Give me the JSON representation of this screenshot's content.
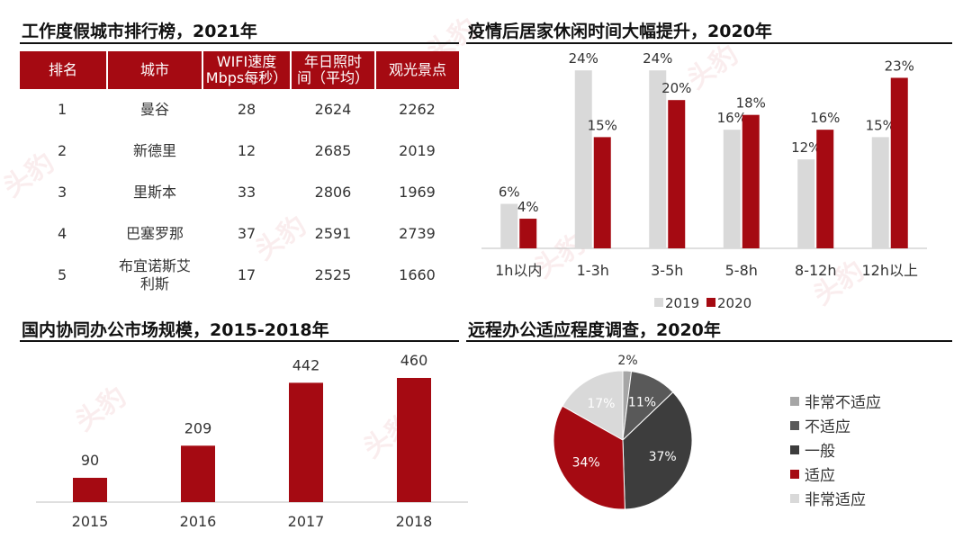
{
  "panels": {
    "cities_title": "工作度假城市排行榜，2021年",
    "leisure_title": "疫情后居家休闲时间大幅提升，2020年",
    "market_title": "国内协同办公市场规模，2015-2018年",
    "remote_title": "远程办公适应程度调查，2020年"
  },
  "watermark": "头豹",
  "colors": {
    "accent": "#a50a12",
    "light_gray": "#d9d9d9",
    "dark_gray": "#3d3d3d"
  },
  "city_table": {
    "headers": [
      "排名",
      "城市",
      "WIFI速度\nMbps每秒）",
      "年日照时\n间（平均）",
      "观光景点"
    ],
    "rows": [
      [
        "1",
        "曼谷",
        "28",
        "2624",
        "2262"
      ],
      [
        "2",
        "新德里",
        "12",
        "2685",
        "2019"
      ],
      [
        "3",
        "里斯本",
        "33",
        "2806",
        "1969"
      ],
      [
        "4",
        "巴塞罗那",
        "37",
        "2591",
        "2739"
      ],
      [
        "5",
        "布宜诺斯艾\n利斯",
        "17",
        "2525",
        "1660"
      ]
    ]
  },
  "chart_data": [
    {
      "type": "bar",
      "categories": [
        "1h以内",
        "1-3h",
        "3-5h",
        "5-8h",
        "8-12h",
        "12h以上"
      ],
      "series": [
        {
          "name": "2019",
          "values": [
            6,
            24,
            24,
            16,
            12,
            15
          ],
          "labels": [
            "6%",
            "24%",
            "24%",
            "16%",
            "12%",
            "15%"
          ]
        },
        {
          "name": "2020",
          "values": [
            4,
            15,
            20,
            18,
            16,
            23
          ],
          "labels": [
            "4%",
            "15%",
            "20%",
            "18%",
            "16%",
            "23%"
          ]
        }
      ],
      "ylim": [
        0,
        25
      ],
      "legend": "bottom"
    },
    {
      "type": "bar",
      "categories": [
        "2015",
        "2016",
        "2017",
        "2018"
      ],
      "values": [
        90,
        209,
        442,
        460
      ],
      "labels": [
        "90",
        "209",
        "442",
        "460"
      ],
      "ylim": [
        0,
        500
      ]
    },
    {
      "type": "pie",
      "slices": [
        {
          "name": "非常不适应",
          "value": 2,
          "label": "2%",
          "color": "#a6a6a6"
        },
        {
          "name": "不适应",
          "value": 11,
          "label": "11%",
          "color": "#595959"
        },
        {
          "name": "一般",
          "value": 37,
          "label": "37%",
          "color": "#3d3d3d"
        },
        {
          "name": "适应",
          "value": 34,
          "label": "34%",
          "color": "#a50a12"
        },
        {
          "name": "非常适应",
          "value": 17,
          "label": "17%",
          "color": "#d9d9d9"
        }
      ],
      "legend": "right"
    }
  ]
}
